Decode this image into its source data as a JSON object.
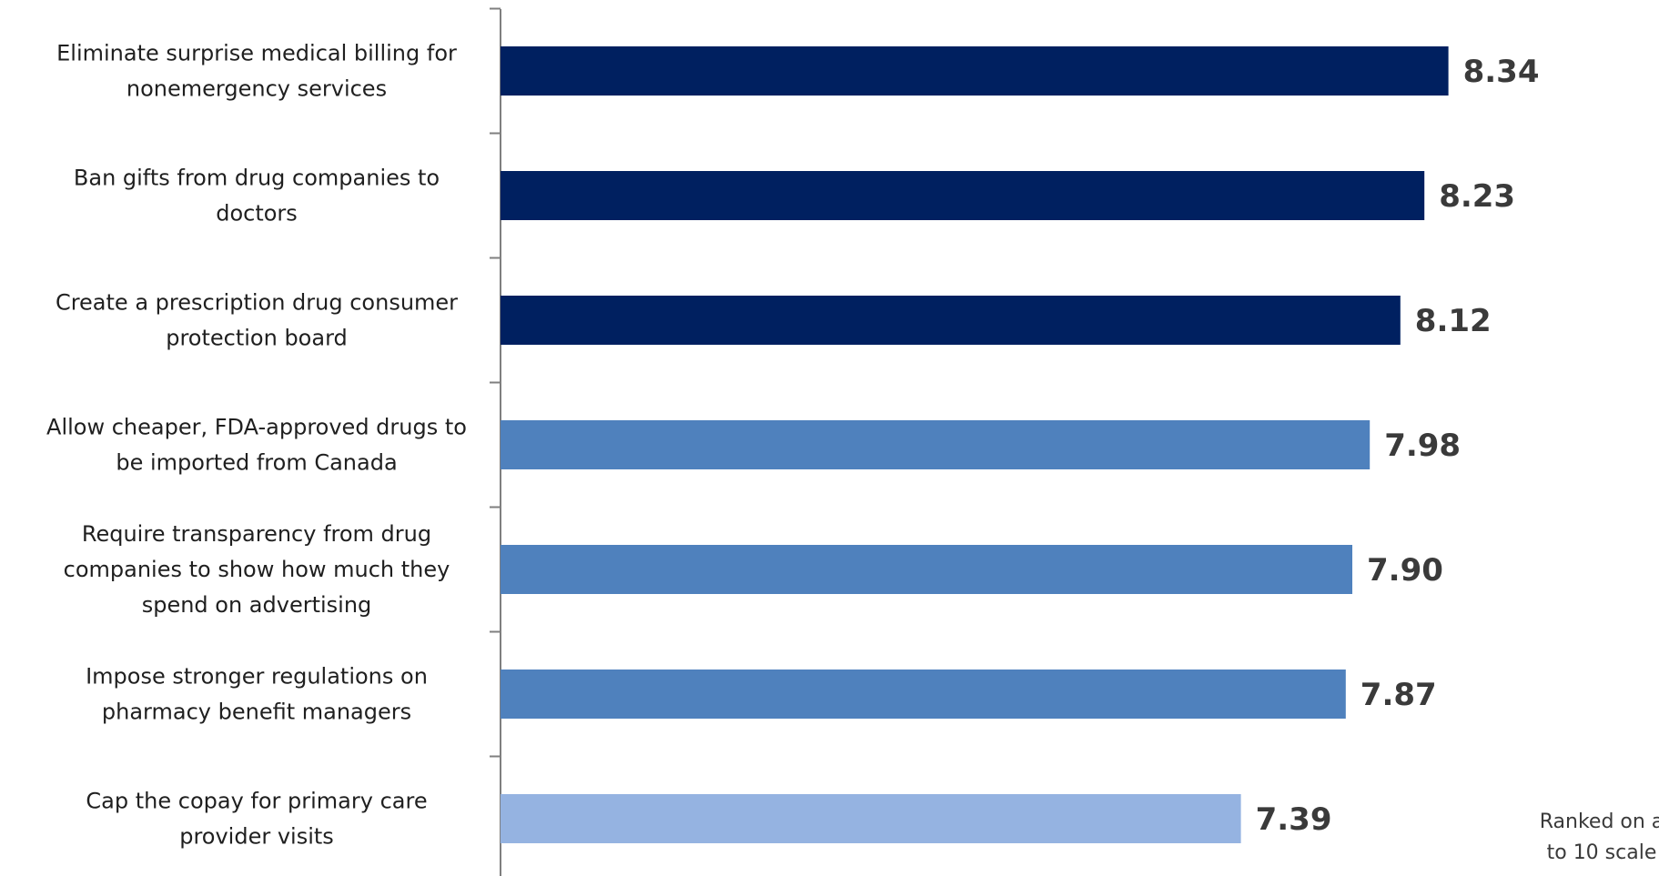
{
  "chart_data": {
    "type": "bar",
    "orientation": "horizontal",
    "title": "",
    "xlabel": "",
    "ylabel": "",
    "categories": [
      "Eliminate surprise medical billing for nonemergency services",
      "Ban gifts from drug companies to doctors",
      "Create a prescription drug consumer protection board",
      "Allow cheaper, FDA-approved drugs to be imported from Canada",
      "Require transparency from drug companies to show how much they spend on advertising",
      "Impose stronger regulations on pharmacy benefit managers",
      "Cap the copay for primary care provider visits"
    ],
    "category_lines": [
      [
        "Eliminate surprise medical billing for",
        "nonemergency services"
      ],
      [
        "Ban gifts from drug companies to",
        "doctors"
      ],
      [
        "Create a prescription drug consumer",
        "protection board"
      ],
      [
        "Allow cheaper, FDA-approved drugs to",
        "be imported from Canada"
      ],
      [
        "Require transparency from drug",
        "companies to show how much they",
        "spend on advertising"
      ],
      [
        "Impose stronger regulations on",
        "pharmacy benefit managers"
      ],
      [
        "Cap the copay for primary care",
        "provider visits"
      ]
    ],
    "values": [
      8.34,
      8.23,
      8.12,
      7.98,
      7.9,
      7.87,
      7.39
    ],
    "value_labels": [
      "8.34",
      "8.23",
      "8.12",
      "7.98",
      "7.90",
      "7.87",
      "7.39"
    ],
    "bar_colors": [
      "#002060",
      "#002060",
      "#002060",
      "#4F81BD",
      "#4F81BD",
      "#4F81BD",
      "#95B3E1"
    ],
    "xlim": [
      4.0,
      8.5
    ],
    "grid": false,
    "legend": null,
    "annotation": [
      "Ranked on a",
      "to 10 scale"
    ]
  }
}
